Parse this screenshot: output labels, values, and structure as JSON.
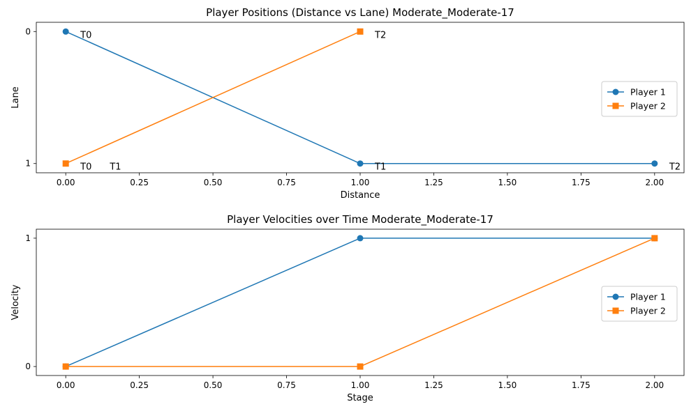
{
  "chart_data": [
    {
      "type": "line",
      "title": "Player Positions (Distance vs Lane) Moderate_Moderate-17",
      "xlabel": "Distance",
      "ylabel": "Lane",
      "xlim": [
        -0.1,
        2.1
      ],
      "ylim": [
        1.07,
        -0.07
      ],
      "y_inverted": true,
      "xticks": [
        0.0,
        0.25,
        0.5,
        0.75,
        1.0,
        1.25,
        1.5,
        1.75,
        2.0
      ],
      "xtick_labels": [
        "0.00",
        "0.25",
        "0.50",
        "0.75",
        "1.00",
        "1.25",
        "1.50",
        "1.75",
        "2.00"
      ],
      "yticks": [
        0,
        1
      ],
      "ytick_labels": [
        "0",
        "1"
      ],
      "grid": false,
      "legend_position": "right",
      "series": [
        {
          "name": "Player 1",
          "color": "#1f77b4",
          "marker": "circle",
          "x": [
            0,
            1,
            2
          ],
          "y": [
            0,
            1,
            1
          ]
        },
        {
          "name": "Player 2",
          "color": "#ff7f0e",
          "marker": "square",
          "x": [
            0,
            1
          ],
          "y": [
            1,
            0
          ]
        }
      ],
      "annotations": [
        {
          "text": "T0",
          "x": 0,
          "y": 0
        },
        {
          "text": "T1",
          "x": 1,
          "y": 1
        },
        {
          "text": "T2",
          "x": 2,
          "y": 1
        },
        {
          "text": "T0",
          "x": 0,
          "y": 1
        },
        {
          "text": "T1",
          "x": 0.1,
          "y": 1
        },
        {
          "text": "T2",
          "x": 1,
          "y": 0
        }
      ]
    },
    {
      "type": "line",
      "title": "Player Velocities over Time Moderate_Moderate-17",
      "xlabel": "Stage",
      "ylabel": "Velocity",
      "xlim": [
        -0.1,
        2.1
      ],
      "ylim": [
        -0.07,
        1.07
      ],
      "xticks": [
        0.0,
        0.25,
        0.5,
        0.75,
        1.0,
        1.25,
        1.5,
        1.75,
        2.0
      ],
      "xtick_labels": [
        "0.00",
        "0.25",
        "0.50",
        "0.75",
        "1.00",
        "1.25",
        "1.50",
        "1.75",
        "2.00"
      ],
      "yticks": [
        0,
        1
      ],
      "ytick_labels": [
        "0",
        "1"
      ],
      "grid": false,
      "legend_position": "right",
      "series": [
        {
          "name": "Player 1",
          "color": "#1f77b4",
          "marker": "circle",
          "x": [
            0,
            1,
            2
          ],
          "y": [
            0,
            1,
            1
          ]
        },
        {
          "name": "Player 2",
          "color": "#ff7f0e",
          "marker": "square",
          "x": [
            0,
            1,
            2
          ],
          "y": [
            0,
            0,
            1
          ]
        }
      ],
      "annotations": []
    }
  ]
}
